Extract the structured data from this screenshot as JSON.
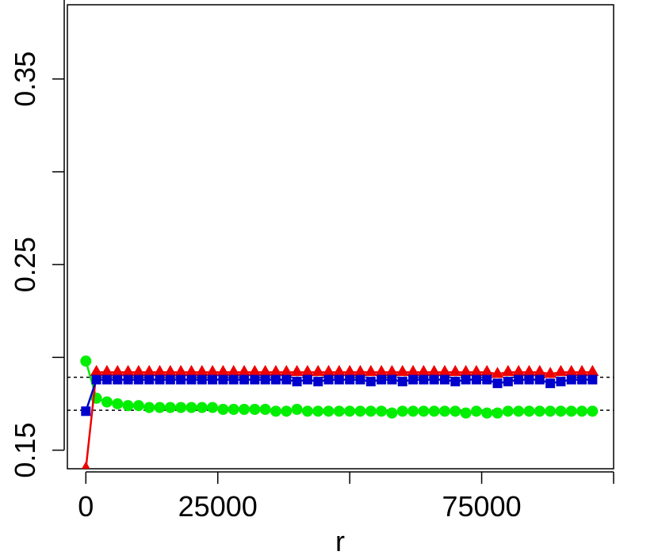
{
  "chart_data": {
    "type": "line",
    "title": "",
    "xlabel": "r",
    "ylabel": "",
    "xlim": [
      -3500,
      100000
    ],
    "ylim": [
      0.14,
      0.39
    ],
    "x_ticks": [
      0,
      25000,
      50000,
      75000,
      100000
    ],
    "x_tick_labels": [
      "0",
      "25000",
      "",
      "75000",
      ""
    ],
    "y_ticks": [
      0.15,
      0.2,
      0.25,
      0.3,
      0.35,
      0.4
    ],
    "y_tick_labels": [
      "0.15",
      "",
      "0.25",
      "",
      "0.35",
      ""
    ],
    "grid": false,
    "legend": "none",
    "reference_lines": [
      {
        "y": 0.1893,
        "style": "dashed",
        "color": "#000000"
      },
      {
        "y": 0.1715,
        "style": "dashed",
        "color": "#000000"
      }
    ],
    "series": [
      {
        "color": "#00ee00",
        "marker": "circle",
        "x": [
          0,
          2000,
          4000,
          6000,
          8000,
          10000,
          12000,
          14000,
          16000,
          18000,
          20000,
          22000,
          24000,
          26000,
          28000,
          30000,
          32000,
          34000,
          36000,
          38000,
          40000,
          42000,
          44000,
          46000,
          48000,
          50000,
          52000,
          54000,
          56000,
          58000,
          60000,
          62000,
          64000,
          66000,
          68000,
          70000,
          72000,
          74000,
          76000,
          78000,
          80000,
          82000,
          84000,
          86000,
          88000,
          90000,
          92000,
          94000,
          96000
        ],
        "y": [
          0.198,
          0.178,
          0.176,
          0.175,
          0.174,
          0.174,
          0.173,
          0.173,
          0.173,
          0.173,
          0.173,
          0.173,
          0.173,
          0.172,
          0.172,
          0.172,
          0.172,
          0.172,
          0.171,
          0.171,
          0.172,
          0.171,
          0.171,
          0.171,
          0.171,
          0.171,
          0.171,
          0.171,
          0.171,
          0.17,
          0.171,
          0.171,
          0.171,
          0.171,
          0.171,
          0.171,
          0.17,
          0.171,
          0.17,
          0.17,
          0.171,
          0.171,
          0.171,
          0.171,
          0.171,
          0.171,
          0.171,
          0.171,
          0.171
        ]
      },
      {
        "color": "#ee0000",
        "marker": "triangle",
        "x": [
          0,
          2000,
          4000,
          6000,
          8000,
          10000,
          12000,
          14000,
          16000,
          18000,
          20000,
          22000,
          24000,
          26000,
          28000,
          30000,
          32000,
          34000,
          36000,
          38000,
          40000,
          42000,
          44000,
          46000,
          48000,
          50000,
          52000,
          54000,
          56000,
          58000,
          60000,
          62000,
          64000,
          66000,
          68000,
          70000,
          72000,
          74000,
          76000,
          78000,
          80000,
          82000,
          84000,
          86000,
          88000,
          90000,
          92000,
          94000,
          96000
        ],
        "y": [
          0.14,
          0.192,
          0.192,
          0.192,
          0.192,
          0.192,
          0.192,
          0.192,
          0.192,
          0.192,
          0.192,
          0.192,
          0.192,
          0.192,
          0.192,
          0.192,
          0.192,
          0.192,
          0.192,
          0.192,
          0.192,
          0.192,
          0.192,
          0.192,
          0.192,
          0.192,
          0.192,
          0.192,
          0.192,
          0.192,
          0.192,
          0.192,
          0.192,
          0.192,
          0.192,
          0.192,
          0.192,
          0.192,
          0.192,
          0.191,
          0.192,
          0.192,
          0.192,
          0.192,
          0.191,
          0.192,
          0.192,
          0.192,
          0.192
        ]
      },
      {
        "color": "#0000cc",
        "marker": "square",
        "x": [
          0,
          2000,
          4000,
          6000,
          8000,
          10000,
          12000,
          14000,
          16000,
          18000,
          20000,
          22000,
          24000,
          26000,
          28000,
          30000,
          32000,
          34000,
          36000,
          38000,
          40000,
          42000,
          44000,
          46000,
          48000,
          50000,
          52000,
          54000,
          56000,
          58000,
          60000,
          62000,
          64000,
          66000,
          68000,
          70000,
          72000,
          74000,
          76000,
          78000,
          80000,
          82000,
          84000,
          86000,
          88000,
          90000,
          92000,
          94000,
          96000
        ],
        "y": [
          0.171,
          0.188,
          0.188,
          0.188,
          0.188,
          0.188,
          0.188,
          0.188,
          0.188,
          0.188,
          0.188,
          0.188,
          0.188,
          0.188,
          0.188,
          0.188,
          0.188,
          0.188,
          0.188,
          0.188,
          0.187,
          0.188,
          0.187,
          0.188,
          0.188,
          0.188,
          0.188,
          0.187,
          0.188,
          0.188,
          0.187,
          0.188,
          0.188,
          0.188,
          0.188,
          0.187,
          0.188,
          0.188,
          0.188,
          0.186,
          0.187,
          0.188,
          0.188,
          0.188,
          0.186,
          0.187,
          0.188,
          0.188,
          0.188
        ]
      }
    ]
  }
}
